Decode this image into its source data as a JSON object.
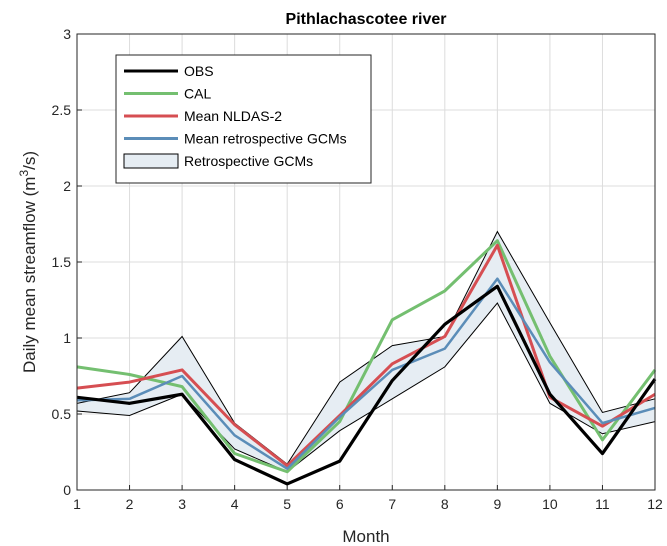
{
  "chart_data": {
    "type": "line",
    "title": "Pithlachascotee river",
    "xlabel": "Month",
    "ylabel_main": "Daily mean streamflow (m",
    "ylabel_sup": "3",
    "ylabel_end": "/s)",
    "x": [
      1,
      2,
      3,
      4,
      5,
      6,
      7,
      8,
      9,
      10,
      11,
      12
    ],
    "xlim": [
      1,
      12
    ],
    "ylim": [
      0,
      3
    ],
    "xticks": [
      "1",
      "2",
      "3",
      "4",
      "5",
      "6",
      "7",
      "8",
      "9",
      "10",
      "11",
      "12"
    ],
    "yticks": [
      "0",
      "0.5",
      "1",
      "1.5",
      "2",
      "2.5",
      "3"
    ],
    "grid": true,
    "legend_position": "top-left",
    "band": {
      "name": "Retrospective GCMs",
      "upper": [
        0.57,
        0.64,
        1.01,
        0.44,
        0.17,
        0.71,
        0.95,
        1.01,
        1.7,
        1.1,
        0.51,
        0.6
      ],
      "lower": [
        0.52,
        0.49,
        0.63,
        0.27,
        0.12,
        0.39,
        0.6,
        0.81,
        1.23,
        0.57,
        0.37,
        0.45
      ],
      "fill": "#e6edf3",
      "edge": "#000000"
    },
    "series": [
      {
        "name": "CAL",
        "color": "#74bf70",
        "width": 3,
        "values": [
          0.81,
          0.76,
          0.68,
          0.24,
          0.12,
          0.45,
          1.12,
          1.31,
          1.64,
          0.88,
          0.33,
          0.79
        ]
      },
      {
        "name": "Mean NLDAS-2",
        "color": "#d64e52",
        "width": 3,
        "values": [
          0.67,
          0.71,
          0.79,
          0.43,
          0.16,
          0.49,
          0.83,
          1.01,
          1.61,
          0.61,
          0.42,
          0.63
        ]
      },
      {
        "name": "Mean retrospective GCMs",
        "color": "#5b8db8",
        "width": 2.5,
        "values": [
          0.59,
          0.6,
          0.75,
          0.36,
          0.14,
          0.48,
          0.79,
          0.93,
          1.39,
          0.84,
          0.44,
          0.54
        ]
      },
      {
        "name": "OBS",
        "color": "#000000",
        "width": 3.2,
        "values": [
          0.61,
          0.57,
          0.63,
          0.2,
          0.04,
          0.19,
          0.72,
          1.09,
          1.34,
          0.63,
          0.24,
          0.73
        ]
      }
    ],
    "legend": [
      {
        "name": "OBS",
        "kind": "line",
        "color": "#000000"
      },
      {
        "name": "CAL",
        "kind": "line",
        "color": "#74bf70"
      },
      {
        "name": "Mean NLDAS-2",
        "kind": "line",
        "color": "#d64e52"
      },
      {
        "name": "Mean retrospective GCMs",
        "kind": "line",
        "color": "#5b8db8"
      },
      {
        "name": "Retrospective GCMs",
        "kind": "patch",
        "color": "#e6edf3"
      }
    ]
  }
}
